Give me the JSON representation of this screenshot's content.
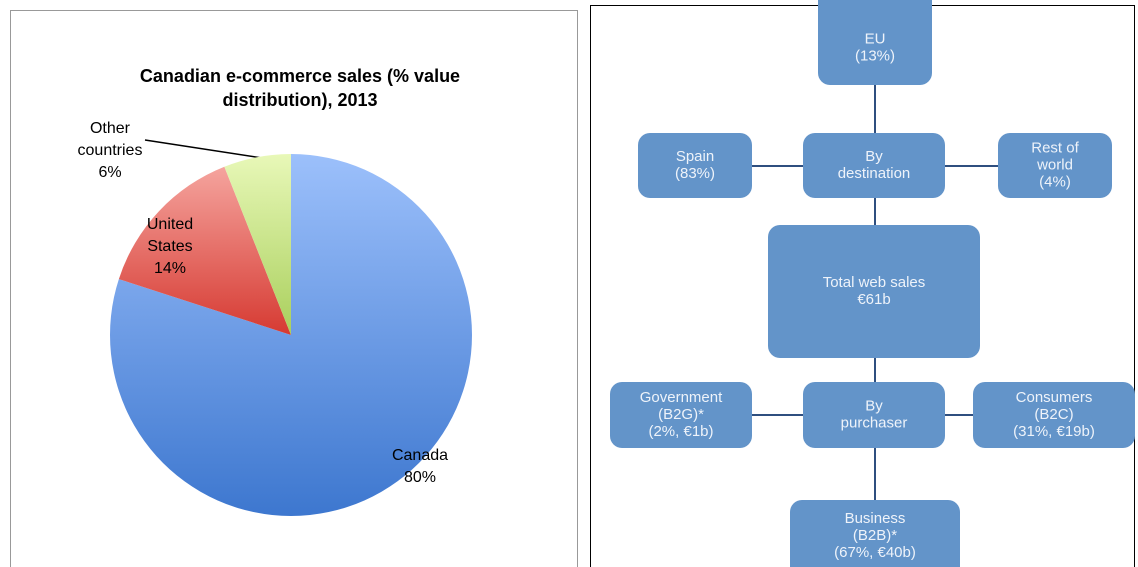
{
  "chart_data": {
    "type": "pie",
    "title": "Canadian e-commerce sales (% value distribution), 2013",
    "categories": [
      "Canada",
      "United States",
      "Other countries"
    ],
    "values": [
      80,
      14,
      6
    ],
    "value_labels": [
      "80%",
      "14%",
      "6%"
    ],
    "colors": [
      "#5a8fe0",
      "#e0605a",
      "#c8e48c"
    ]
  },
  "diagram": {
    "nodes": [
      {
        "lines": [
          "EU",
          "(13%)"
        ]
      },
      {
        "lines": [
          "Spain",
          "(83%)"
        ]
      },
      {
        "lines": [
          "By",
          "destination"
        ]
      },
      {
        "lines": [
          "Rest of",
          "world",
          "(4%)"
        ]
      },
      {
        "lines": [
          "Total web sales",
          "€61b"
        ]
      },
      {
        "lines": [
          "Government",
          "(B2G)*",
          "(2%, €1b)"
        ]
      },
      {
        "lines": [
          "By",
          "purchaser"
        ]
      },
      {
        "lines": [
          "Consumers",
          "(B2C)",
          "(31%, €19b)"
        ]
      },
      {
        "lines": [
          "Business",
          "(B2B)*",
          "(67%, €40b)"
        ]
      }
    ]
  }
}
